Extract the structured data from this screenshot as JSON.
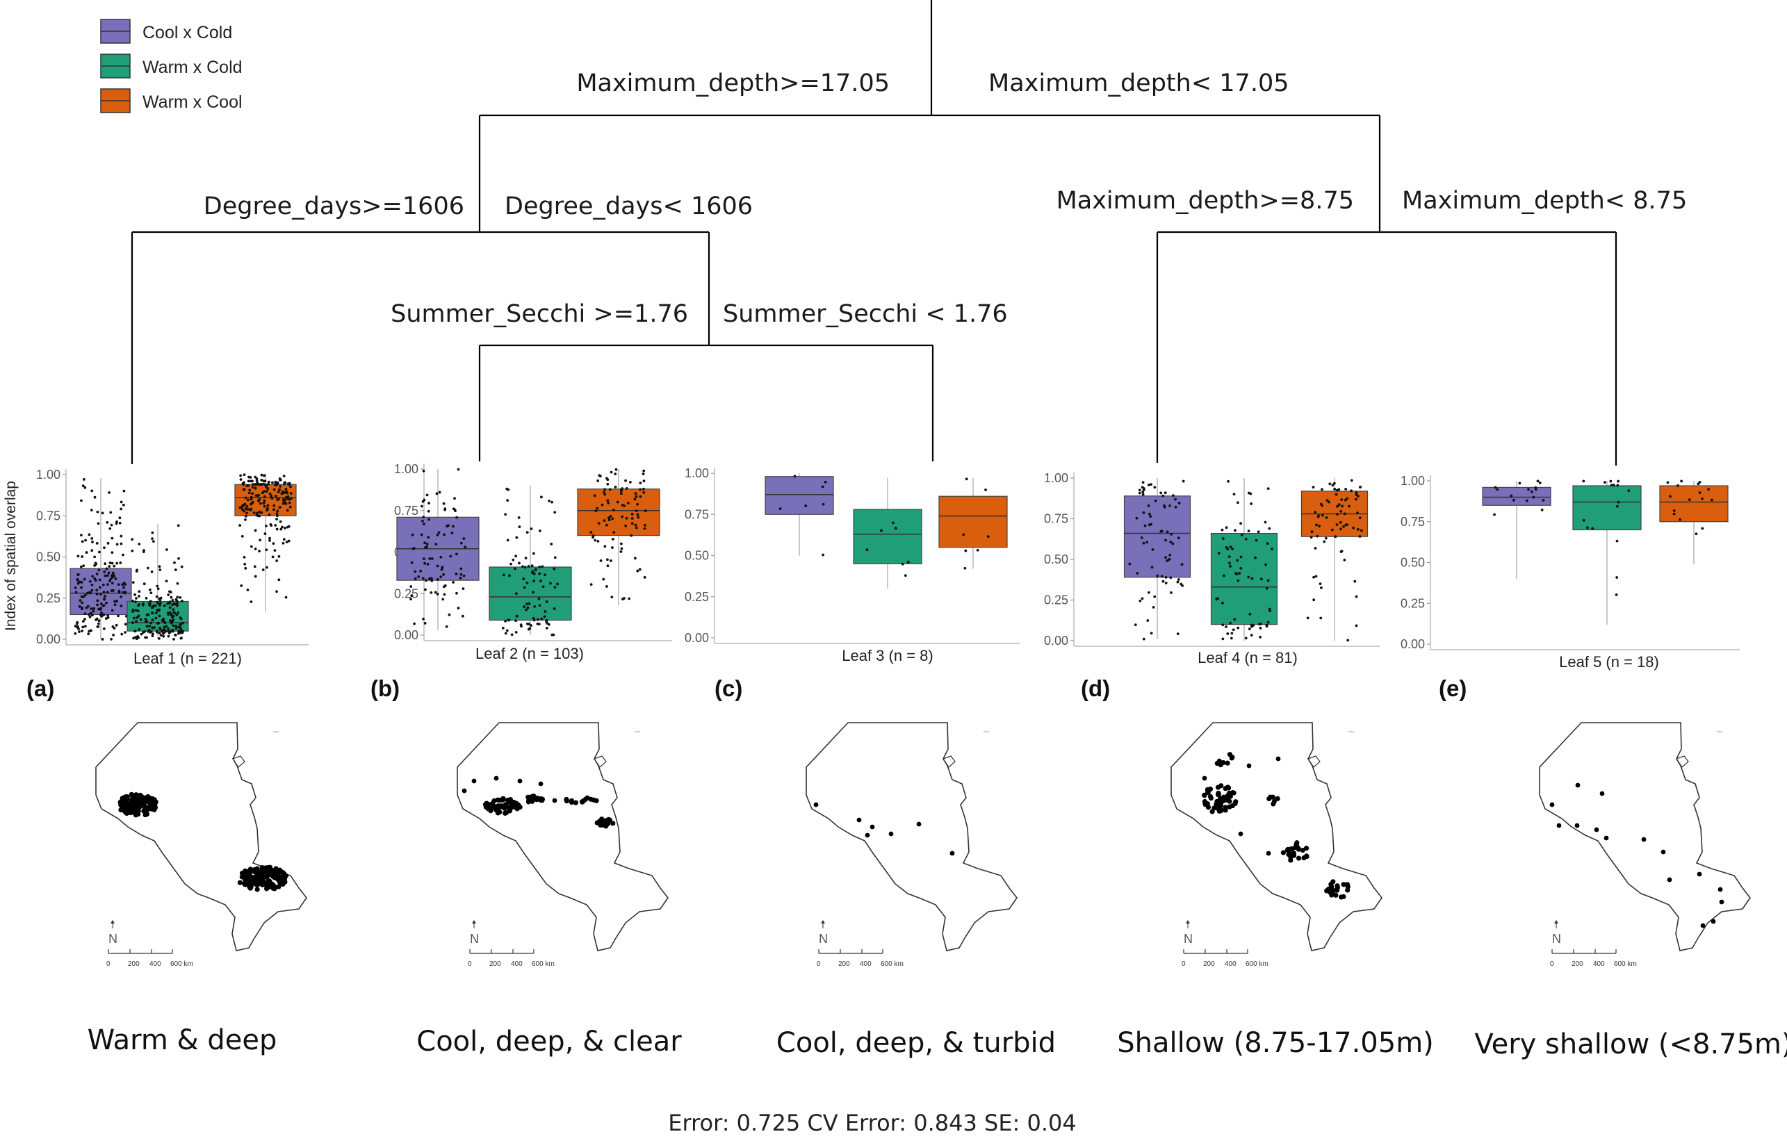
{
  "legend": [
    {
      "label": "Cool x Cold",
      "color": "#7a6fb9"
    },
    {
      "label": "Warm x Cold",
      "color": "#1f9e78"
    },
    {
      "label": "Warm x Cool",
      "color": "#d95f0e"
    }
  ],
  "splits": {
    "root_left": "Maximum_depth>=17.05",
    "root_right": "Maximum_depth< 17.05",
    "deep_left": "Degree_days>=1606",
    "deep_right": "Degree_days< 1606",
    "cool_left": "Summer_Secchi >=1.76",
    "cool_right": "Summer_Secchi < 1.76",
    "shallow_left": "Maximum_depth>=8.75",
    "shallow_right": "Maximum_depth< 8.75"
  },
  "chart_data": {
    "type": "boxplot",
    "ylabel": "Index of spatial overlap",
    "ylim": [
      0,
      1
    ],
    "yticks": [
      "0.00",
      "0.25",
      "0.50",
      "0.75",
      "1.00"
    ],
    "series_names": [
      "Cool x Cold",
      "Warm x Cold",
      "Warm x Cool"
    ],
    "leaves": [
      {
        "label": "Leaf 1 (n = 221)",
        "panel": "(a)",
        "n": 221,
        "boxes": [
          {
            "q1": 0.15,
            "median": 0.28,
            "q3": 0.43,
            "min": 0.0,
            "max": 0.98
          },
          {
            "q1": 0.05,
            "median": 0.1,
            "q3": 0.23,
            "min": 0.0,
            "max": 0.7
          },
          {
            "q1": 0.75,
            "median": 0.86,
            "q3": 0.94,
            "min": 0.17,
            "max": 1.0
          }
        ]
      },
      {
        "label": "Leaf 2 (n = 103)",
        "panel": "(b)",
        "n": 103,
        "boxes": [
          {
            "q1": 0.33,
            "median": 0.52,
            "q3": 0.71,
            "min": 0.03,
            "max": 1.0
          },
          {
            "q1": 0.09,
            "median": 0.23,
            "q3": 0.41,
            "min": 0.0,
            "max": 0.9
          },
          {
            "q1": 0.6,
            "median": 0.75,
            "q3": 0.88,
            "min": 0.18,
            "max": 1.0
          }
        ]
      },
      {
        "label": "Leaf 3 (n = 8)",
        "panel": "(c)",
        "n": 8,
        "boxes": [
          {
            "q1": 0.75,
            "median": 0.87,
            "q3": 0.98,
            "min": 0.5,
            "max": 1.0
          },
          {
            "q1": 0.45,
            "median": 0.63,
            "q3": 0.78,
            "min": 0.3,
            "max": 0.97
          },
          {
            "q1": 0.55,
            "median": 0.74,
            "q3": 0.86,
            "min": 0.42,
            "max": 0.97
          }
        ]
      },
      {
        "label": "Leaf 4 (n = 81)",
        "panel": "(d)",
        "n": 81,
        "boxes": [
          {
            "q1": 0.39,
            "median": 0.66,
            "q3": 0.89,
            "min": 0.01,
            "max": 1.0
          },
          {
            "q1": 0.1,
            "median": 0.33,
            "q3": 0.66,
            "min": 0.0,
            "max": 1.0
          },
          {
            "q1": 0.64,
            "median": 0.78,
            "q3": 0.92,
            "min": 0.0,
            "max": 1.0
          }
        ]
      },
      {
        "label": "Leaf 5 (n = 18)",
        "panel": "(e)",
        "n": 18,
        "boxes": [
          {
            "q1": 0.85,
            "median": 0.9,
            "q3": 0.96,
            "min": 0.4,
            "max": 1.0
          },
          {
            "q1": 0.7,
            "median": 0.87,
            "q3": 0.97,
            "min": 0.12,
            "max": 1.0
          },
          {
            "q1": 0.75,
            "median": 0.87,
            "q3": 0.97,
            "min": 0.49,
            "max": 1.0
          }
        ]
      }
    ]
  },
  "maps": {
    "scale_labels": [
      "0",
      "200",
      "400",
      "600 km"
    ],
    "north_label": "N",
    "descriptions": [
      "Warm & deep",
      "Cool, deep, & clear",
      "Cool, deep, & turbid",
      "Shallow (8.75-17.05m)",
      "Very shallow (<8.75m)"
    ]
  },
  "footer": "Error: 0.725 CV Error: 0.843 SE: 0.04"
}
